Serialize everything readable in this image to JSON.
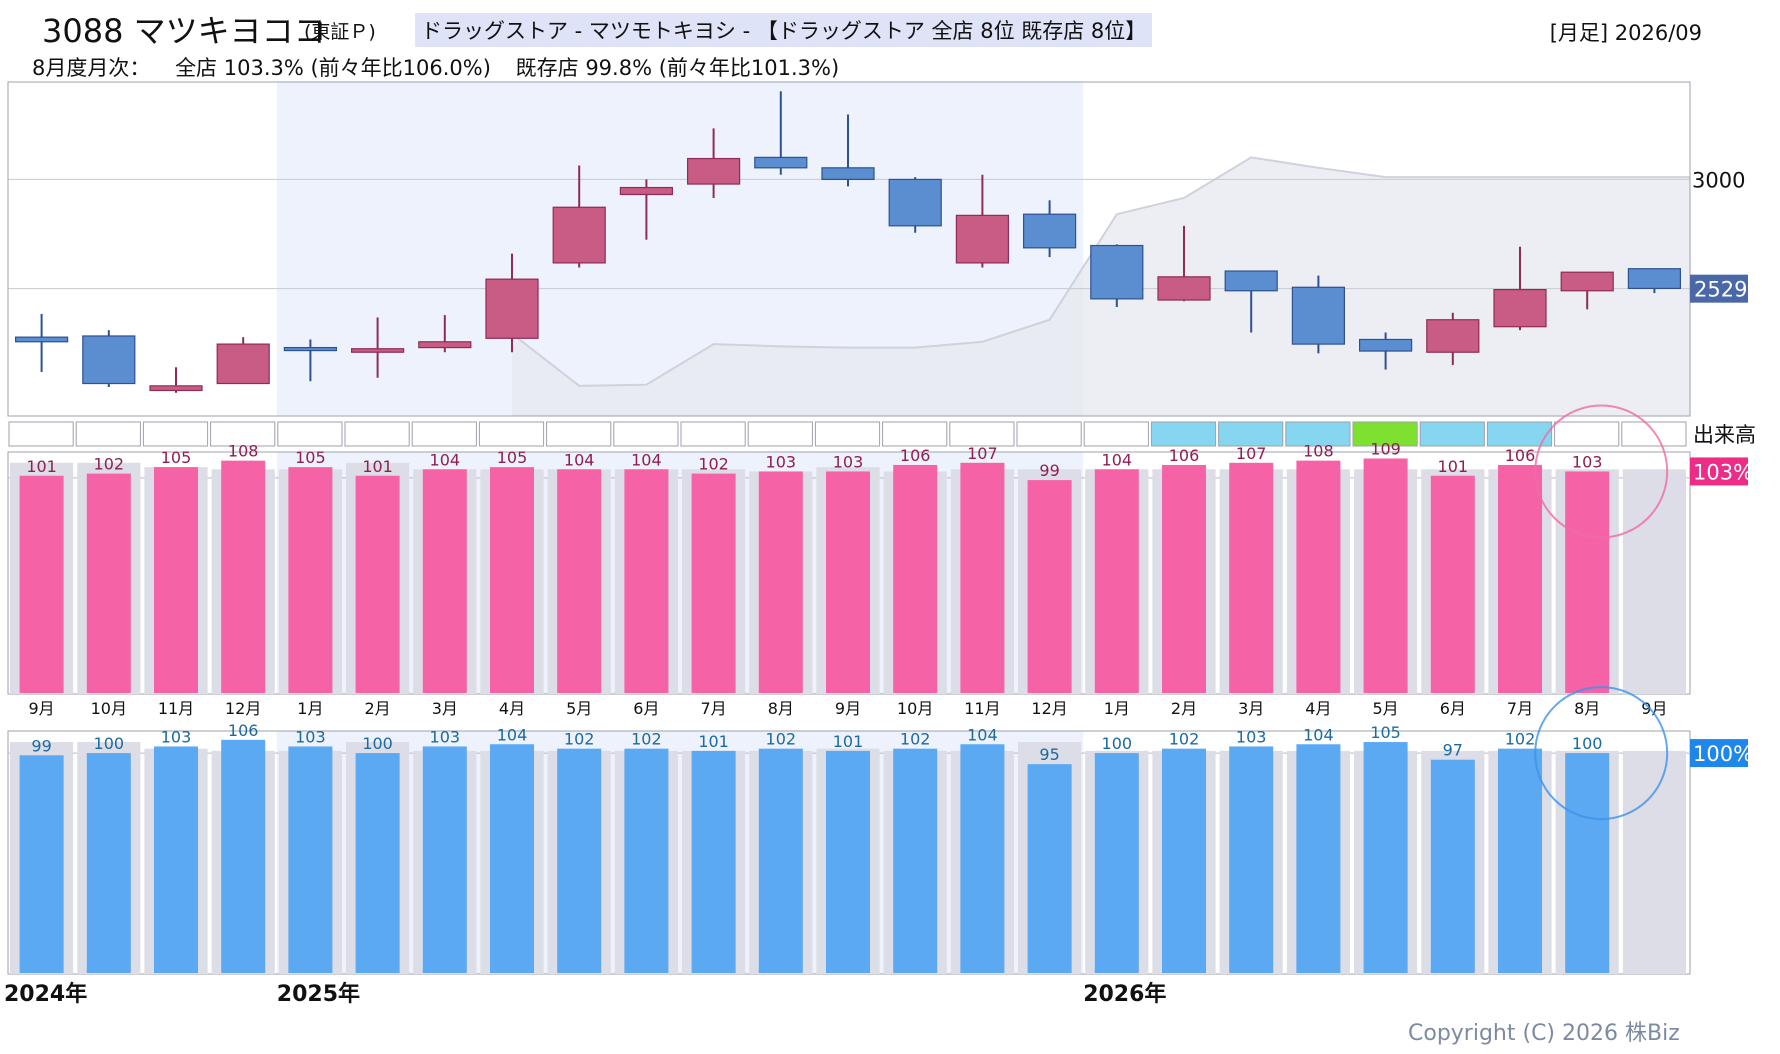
{
  "header": {
    "code_name": "3088 マツキヨココ",
    "market": "(東証Ｐ)",
    "industry": "ドラッグストア - マツモトキヨシ - 【ドラッグストア 全店 8位 既存店 8位】",
    "period": "[月足] 2026/09",
    "summary_label": "8月度月次：",
    "summary_all": "全店 103.3% (前々年比106.0%)",
    "summary_existing": "既存店 99.8% (前々年比101.3%)"
  },
  "copyright": "Copyright (C) 2026 株Biz",
  "colors": {
    "up": "#c95c84",
    "down": "#5b8ed0",
    "all_store_bar": "#f563a6",
    "existing_bar": "#5aa9f2",
    "prev_year_bar": "#dcdde7",
    "all_badge": "#ec2c87",
    "existing_badge": "#1f86ea",
    "price_badge": "#4a67a8",
    "volume_light": "#86d6ef",
    "volume_bright": "#7ee02f"
  },
  "chart_data": [
    {
      "type": "candlestick",
      "title": "",
      "months": [
        "2024-09",
        "2024-10",
        "2024-11",
        "2024-12",
        "2025-01",
        "2025-02",
        "2025-03",
        "2025-04",
        "2025-05",
        "2025-06",
        "2025-07",
        "2025-08",
        "2025-09",
        "2025-10",
        "2025-11",
        "2025-12",
        "2026-01",
        "2026-02",
        "2026-03",
        "2026-04",
        "2026-05",
        "2026-06",
        "2026-07",
        "2026-08",
        "2026-09"
      ],
      "ohlc": [
        {
          "open": 2320,
          "high": 2420,
          "low": 2170,
          "close": 2300
        },
        {
          "open": 2325,
          "high": 2350,
          "low": 2105,
          "close": 2120
        },
        {
          "open": 2090,
          "high": 2190,
          "low": 2080,
          "close": 2110
        },
        {
          "open": 2120,
          "high": 2320,
          "low": 2120,
          "close": 2290
        },
        {
          "open": 2275,
          "high": 2310,
          "low": 2130,
          "close": 2265
        },
        {
          "open": 2255,
          "high": 2405,
          "low": 2145,
          "close": 2270
        },
        {
          "open": 2275,
          "high": 2415,
          "low": 2255,
          "close": 2300
        },
        {
          "open": 2315,
          "high": 2680,
          "low": 2255,
          "close": 2570
        },
        {
          "open": 2640,
          "high": 3060,
          "low": 2620,
          "close": 2880
        },
        {
          "open": 2935,
          "high": 3000,
          "low": 2740,
          "close": 2965
        },
        {
          "open": 2980,
          "high": 3220,
          "low": 2920,
          "close": 3090
        },
        {
          "open": 3095,
          "high": 3380,
          "low": 3020,
          "close": 3050
        },
        {
          "open": 3050,
          "high": 3280,
          "low": 2970,
          "close": 3000
        },
        {
          "open": 3000,
          "high": 3010,
          "low": 2770,
          "close": 2800
        },
        {
          "open": 2640,
          "high": 3020,
          "low": 2620,
          "close": 2845
        },
        {
          "open": 2850,
          "high": 2910,
          "low": 2665,
          "close": 2705
        },
        {
          "open": 2715,
          "high": 2720,
          "low": 2450,
          "close": 2485
        },
        {
          "open": 2480,
          "high": 2800,
          "low": 2475,
          "close": 2580
        },
        {
          "open": 2605,
          "high": 2605,
          "low": 2340,
          "close": 2520
        },
        {
          "open": 2535,
          "high": 2585,
          "low": 2250,
          "close": 2290
        },
        {
          "open": 2310,
          "high": 2340,
          "low": 2180,
          "close": 2260
        },
        {
          "open": 2255,
          "high": 2425,
          "low": 2200,
          "close": 2395
        },
        {
          "open": 2365,
          "high": 2710,
          "low": 2350,
          "close": 2525
        },
        {
          "open": 2520,
          "high": 2600,
          "low": 2440,
          "close": 2600
        },
        {
          "open": 2615,
          "high": 2615,
          "low": 2510,
          "close": 2530
        }
      ],
      "shadow_line_start": "2025-04",
      "shadow_line": [
        2335,
        2110,
        2115,
        2290,
        2280,
        2275,
        2275,
        2300,
        2395,
        2850,
        2920,
        3095,
        3050,
        3010
      ],
      "ylim": [
        1980,
        3420
      ],
      "y_tick_label": "3000",
      "y_tick_value": 3000,
      "price_badge": "2529",
      "current_price": 2529
    },
    {
      "type": "volume-strip",
      "label": "出来高",
      "levels": [
        0,
        0,
        0,
        0,
        0,
        0,
        0,
        0,
        0,
        0,
        0,
        0,
        0,
        0,
        0,
        0,
        0,
        1,
        1,
        1,
        2,
        1,
        1,
        0,
        0
      ]
    },
    {
      "type": "bar",
      "label": "全店",
      "categories": [
        "9月",
        "10月",
        "11月",
        "12月",
        "1月",
        "2月",
        "3月",
        "4月",
        "5月",
        "6月",
        "7月",
        "8月",
        "9月",
        "10月",
        "11月",
        "12月",
        "1月",
        "2月",
        "3月",
        "4月",
        "5月",
        "6月",
        "7月",
        "8月",
        "9月"
      ],
      "values": [
        101,
        102,
        105,
        108,
        105,
        101,
        104,
        105,
        104,
        104,
        102,
        103,
        103,
        106,
        107,
        99,
        104,
        106,
        107,
        108,
        109,
        101,
        106,
        103,
        null
      ],
      "value_labels": [
        "101",
        "102",
        "105",
        "108",
        "105",
        "101",
        "104",
        "105",
        "104",
        "104",
        "102",
        "103",
        "103",
        "106",
        "107",
        "99",
        "104",
        "106",
        "107",
        "108",
        "109",
        "101",
        "106",
        "103",
        ""
      ],
      "prev_year_values": [
        107,
        107,
        105,
        104,
        104,
        107,
        104,
        104,
        104,
        104,
        104,
        103,
        105,
        103,
        104,
        104,
        104,
        104,
        104,
        104,
        104,
        104,
        104,
        104,
        104
      ],
      "ylim": [
        0,
        112
      ],
      "badge": "103%",
      "highlight_index": 23
    },
    {
      "type": "bar",
      "label": "既存店",
      "categories": [
        "9月",
        "10月",
        "11月",
        "12月",
        "1月",
        "2月",
        "3月",
        "4月",
        "5月",
        "6月",
        "7月",
        "8月",
        "9月",
        "10月",
        "11月",
        "12月",
        "1月",
        "2月",
        "3月",
        "4月",
        "5月",
        "6月",
        "7月",
        "8月",
        "9月"
      ],
      "values": [
        99,
        100,
        103,
        106,
        103,
        100,
        103,
        104,
        102,
        102,
        101,
        102,
        101,
        102,
        104,
        95,
        100,
        102,
        103,
        104,
        105,
        97,
        102,
        100,
        null
      ],
      "value_labels": [
        "99",
        "100",
        "103",
        "106",
        "103",
        "100",
        "103",
        "104",
        "102",
        "102",
        "101",
        "102",
        "101",
        "102",
        "104",
        "95",
        "100",
        "102",
        "103",
        "104",
        "105",
        "97",
        "102",
        "100",
        ""
      ],
      "prev_year_values": [
        105,
        105,
        102,
        101,
        101,
        105,
        101,
        101,
        101,
        101,
        101,
        101,
        102,
        101,
        101,
        105,
        101,
        101,
        101,
        101,
        101,
        101,
        101,
        101,
        101
      ],
      "ylim": [
        0,
        110
      ],
      "badge": "100%",
      "highlight_index": 23
    }
  ],
  "years": [
    "2024年",
    "2025年",
    "2026年"
  ]
}
